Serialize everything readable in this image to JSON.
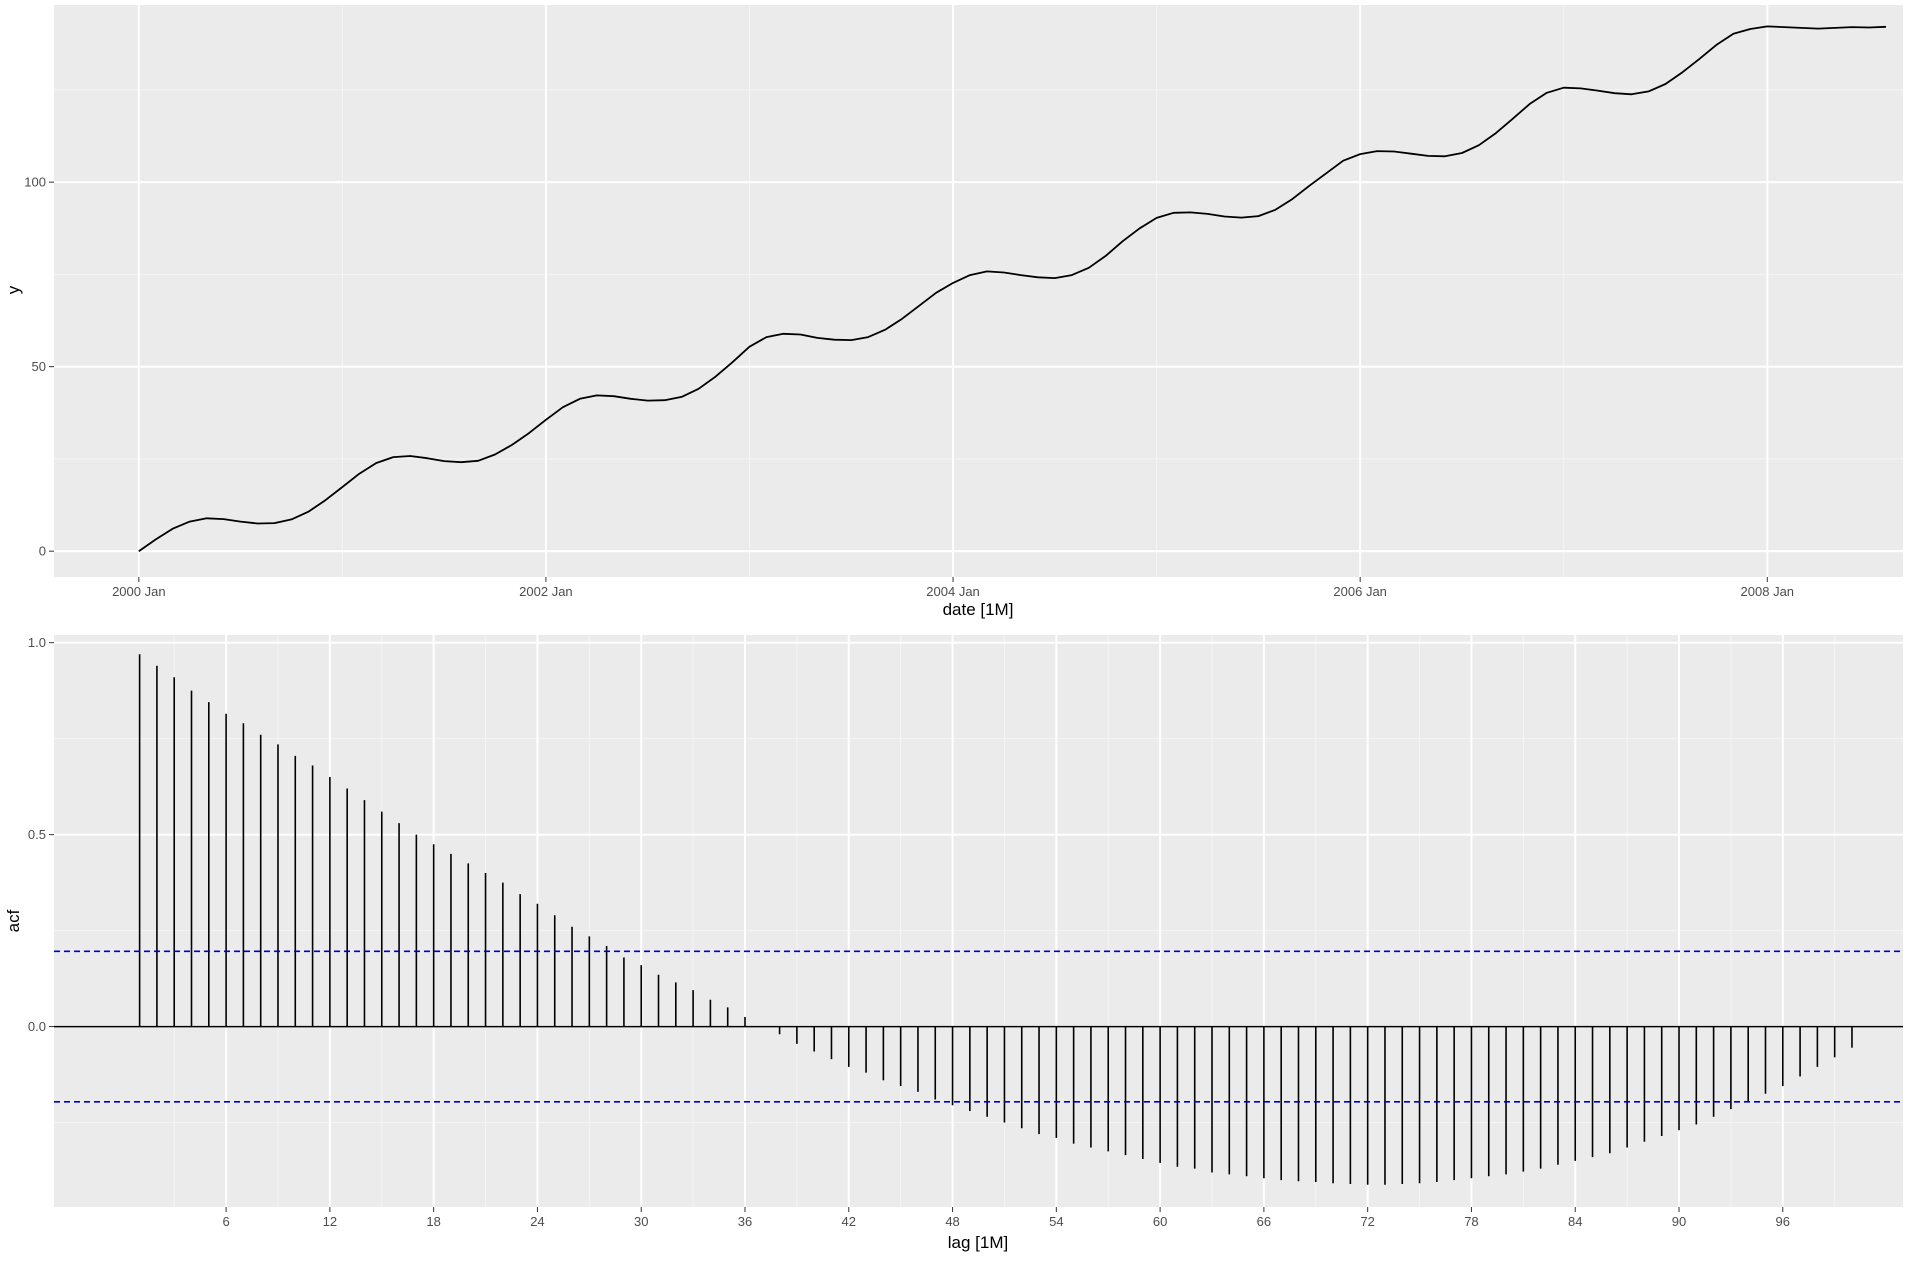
{
  "chart_data": [
    {
      "type": "line",
      "xlabel": "date [1M]",
      "ylabel": "y",
      "x_tick_labels": [
        "2000 Jan",
        "2002 Jan",
        "2004 Jan",
        "2006 Jan",
        "2008 Jan"
      ],
      "y_tick_labels": [
        "0",
        "50",
        "100"
      ],
      "x_tick_values": [
        0,
        24,
        48,
        72,
        96
      ],
      "y_tick_values": [
        0,
        50,
        100
      ],
      "xlim": [
        -5,
        104
      ],
      "ylim": [
        -7,
        148
      ],
      "grid": true,
      "series": [
        {
          "x": [
            0,
            1,
            2,
            3,
            4,
            5,
            6,
            7,
            8,
            9,
            10,
            11,
            12,
            13,
            14,
            15,
            16,
            17,
            18,
            19,
            20,
            21,
            22,
            23,
            24,
            25,
            26,
            27,
            28,
            29,
            30,
            31,
            32,
            33,
            34,
            35,
            36,
            37,
            38,
            39,
            40,
            41,
            42,
            43,
            44,
            45,
            46,
            47,
            48,
            49,
            50,
            51,
            52,
            53,
            54,
            55,
            56,
            57,
            58,
            59,
            60,
            61,
            62,
            63,
            64,
            65,
            66,
            67,
            68,
            69,
            70,
            71,
            72,
            73,
            74,
            75,
            76,
            77,
            78,
            79,
            80,
            81,
            82,
            83,
            84,
            85,
            86,
            87,
            88,
            89,
            90,
            91,
            92,
            93,
            94,
            95,
            96,
            97,
            98,
            99,
            100,
            101,
            102,
            103
          ],
          "values": [
            0.0,
            3.2,
            6.1,
            8.0,
            8.9,
            8.7,
            8.0,
            7.5,
            7.6,
            8.6,
            10.7,
            13.8,
            17.4,
            21.0,
            23.9,
            25.5,
            25.8,
            25.2,
            24.4,
            24.1,
            24.5,
            26.2,
            28.8,
            32.0,
            35.6,
            39.0,
            41.3,
            42.2,
            42.0,
            41.3,
            40.8,
            40.9,
            41.8,
            44.0,
            47.3,
            51.2,
            55.4,
            58.0,
            58.9,
            58.7,
            57.8,
            57.3,
            57.2,
            58.0,
            60.0,
            63.0,
            66.5,
            70.0,
            72.7,
            74.8,
            75.8,
            75.5,
            74.8,
            74.2,
            74.0,
            74.8,
            76.8,
            80.0,
            84.0,
            87.5,
            90.3,
            91.7,
            91.8,
            91.4,
            90.7,
            90.4,
            90.8,
            92.5,
            95.4,
            99.0,
            102.4,
            105.8,
            107.6,
            108.4,
            108.3,
            107.7,
            107.1,
            107.0,
            107.9,
            110.0,
            113.3,
            117.2,
            121.2,
            124.2,
            125.6,
            125.4,
            124.8,
            124.1,
            123.8,
            124.6,
            126.6,
            129.8,
            133.4,
            137.2,
            140.2,
            141.5,
            142.2,
            142.0,
            141.8,
            141.6,
            141.8,
            142.0,
            141.9,
            142.1
          ],
          "color": "#000000"
        }
      ]
    },
    {
      "type": "bar",
      "xlabel": "lag [1M]",
      "ylabel": "acf",
      "x_tick_labels": [
        "6",
        "12",
        "18",
        "24",
        "30",
        "36",
        "42",
        "48",
        "54",
        "60",
        "66",
        "72",
        "78",
        "84",
        "90",
        "96"
      ],
      "y_tick_labels": [
        "0.0",
        "0.5",
        "1.0"
      ],
      "x_tick_values": [
        6,
        12,
        18,
        24,
        30,
        36,
        42,
        48,
        54,
        60,
        66,
        72,
        78,
        84,
        90,
        96
      ],
      "y_tick_values": [
        0,
        0.5,
        1.0
      ],
      "xlim": [
        -3.95,
        102.95
      ],
      "ylim": [
        -0.47,
        1.02
      ],
      "grid": true,
      "lags": [
        1,
        2,
        3,
        4,
        5,
        6,
        7,
        8,
        9,
        10,
        11,
        12,
        13,
        14,
        15,
        16,
        17,
        18,
        19,
        20,
        21,
        22,
        23,
        24,
        25,
        26,
        27,
        28,
        29,
        30,
        31,
        32,
        33,
        34,
        35,
        36,
        37,
        38,
        39,
        40,
        41,
        42,
        43,
        44,
        45,
        46,
        47,
        48,
        49,
        50,
        51,
        52,
        53,
        54,
        55,
        56,
        57,
        58,
        59,
        60,
        61,
        62,
        63,
        64,
        65,
        66,
        67,
        68,
        69,
        70,
        71,
        72,
        73,
        74,
        75,
        76,
        77,
        78,
        79,
        80,
        81,
        82,
        83,
        84,
        85,
        86,
        87,
        88,
        89,
        90,
        91,
        92,
        93,
        94,
        95,
        96,
        97,
        98,
        99,
        100
      ],
      "values": [
        0.97,
        0.94,
        0.91,
        0.875,
        0.845,
        0.815,
        0.79,
        0.76,
        0.735,
        0.705,
        0.68,
        0.65,
        0.62,
        0.59,
        0.56,
        0.53,
        0.5,
        0.475,
        0.45,
        0.425,
        0.4,
        0.375,
        0.345,
        0.32,
        0.29,
        0.26,
        0.235,
        0.21,
        0.18,
        0.16,
        0.135,
        0.115,
        0.095,
        0.07,
        0.05,
        0.025,
        0.0,
        -0.02,
        -0.045,
        -0.065,
        -0.085,
        -0.105,
        -0.12,
        -0.14,
        -0.155,
        -0.17,
        -0.19,
        -0.205,
        -0.22,
        -0.235,
        -0.25,
        -0.265,
        -0.28,
        -0.29,
        -0.305,
        -0.315,
        -0.325,
        -0.335,
        -0.345,
        -0.355,
        -0.365,
        -0.37,
        -0.38,
        -0.385,
        -0.39,
        -0.395,
        -0.4,
        -0.403,
        -0.405,
        -0.408,
        -0.41,
        -0.412,
        -0.412,
        -0.41,
        -0.408,
        -0.405,
        -0.4,
        -0.395,
        -0.39,
        -0.385,
        -0.378,
        -0.37,
        -0.36,
        -0.35,
        -0.34,
        -0.33,
        -0.315,
        -0.3,
        -0.285,
        -0.27,
        -0.255,
        -0.235,
        -0.215,
        -0.195,
        -0.175,
        -0.155,
        -0.13,
        -0.105,
        -0.08,
        -0.055
      ],
      "confidence_band": [
        -0.196,
        0.196
      ],
      "bar_color": "#000000",
      "band_color": "#0000CC"
    }
  ]
}
